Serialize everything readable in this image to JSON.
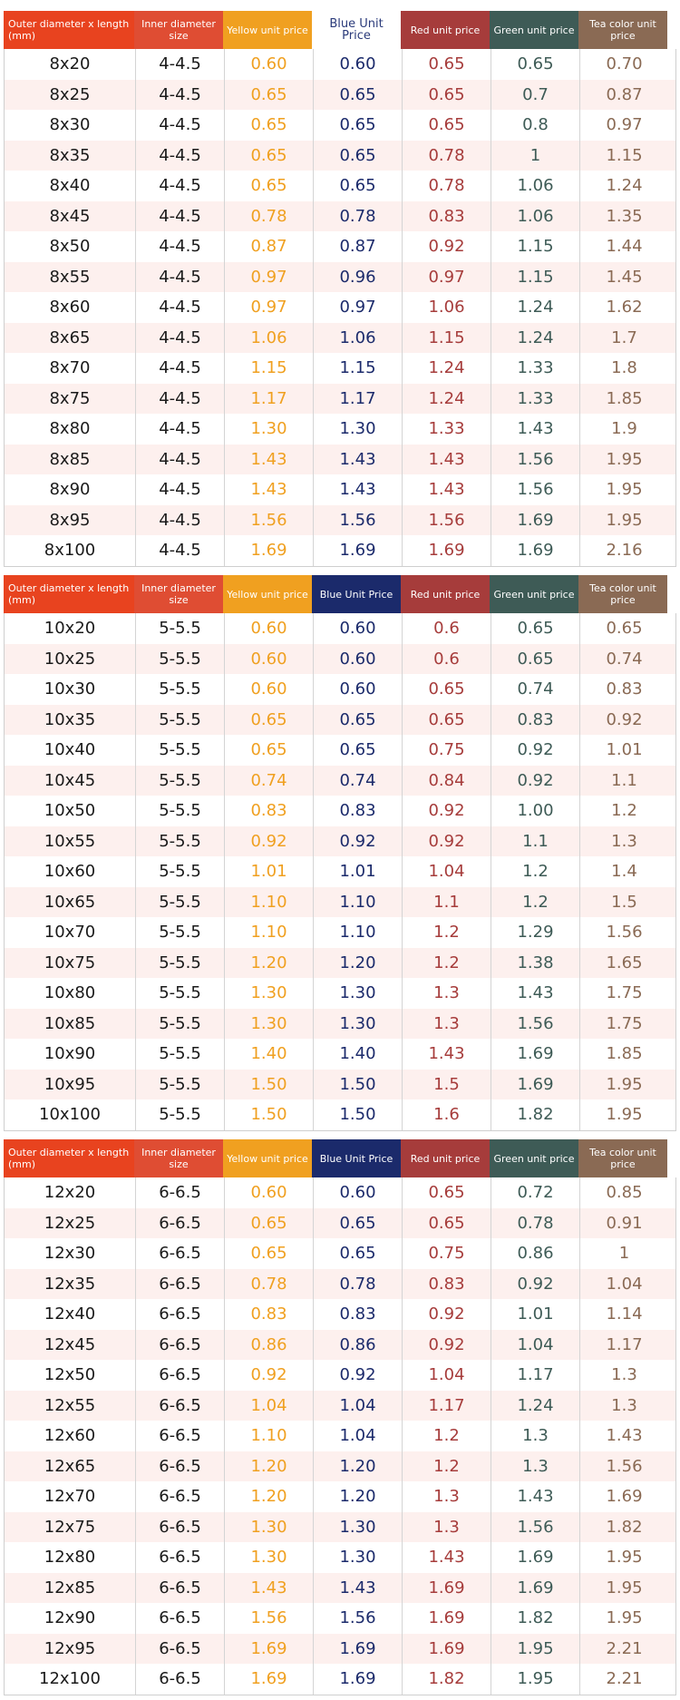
{
  "colors": {
    "size": "#e8431f",
    "inner": "#df4d33",
    "yellow": "#f0a020",
    "blue": "#1b2a6b",
    "red": "#a63c3b",
    "green": "#3e5b56",
    "tea": "#8a6a54"
  },
  "tables": [
    {
      "headers": [
        "Outer diameter x length (mm)",
        "Inner diameter size",
        "Yellow unit price",
        "Blue Unit Price",
        "Red unit price",
        "Green unit price",
        "Tea color unit price"
      ],
      "rows": [
        [
          "8x20",
          "4-4.5",
          "0.60",
          "0.60",
          "0.65",
          "0.65",
          "0.70"
        ],
        [
          "8x25",
          "4-4.5",
          "0.65",
          "0.65",
          "0.65",
          "0.7",
          "0.87"
        ],
        [
          "8x30",
          "4-4.5",
          "0.65",
          "0.65",
          "0.65",
          "0.8",
          "0.97"
        ],
        [
          "8x35",
          "4-4.5",
          "0.65",
          "0.65",
          "0.78",
          "1",
          "1.15"
        ],
        [
          "8x40",
          "4-4.5",
          "0.65",
          "0.65",
          "0.78",
          "1.06",
          "1.24"
        ],
        [
          "8x45",
          "4-4.5",
          "0.78",
          "0.78",
          "0.83",
          "1.06",
          "1.35"
        ],
        [
          "8x50",
          "4-4.5",
          "0.87",
          "0.87",
          "0.92",
          "1.15",
          "1.44"
        ],
        [
          "8x55",
          "4-4.5",
          "0.97",
          "0.96",
          "0.97",
          "1.15",
          "1.45"
        ],
        [
          "8x60",
          "4-4.5",
          "0.97",
          "0.97",
          "1.06",
          "1.24",
          "1.62"
        ],
        [
          "8x65",
          "4-4.5",
          "1.06",
          "1.06",
          "1.15",
          "1.24",
          "1.7"
        ],
        [
          "8x70",
          "4-4.5",
          "1.15",
          "1.15",
          "1.24",
          "1.33",
          "1.8"
        ],
        [
          "8x75",
          "4-4.5",
          "1.17",
          "1.17",
          "1.24",
          "1.33",
          "1.85"
        ],
        [
          "8x80",
          "4-4.5",
          "1.30",
          "1.30",
          "1.33",
          "1.43",
          "1.9"
        ],
        [
          "8x85",
          "4-4.5",
          "1.43",
          "1.43",
          "1.43",
          "1.56",
          "1.95"
        ],
        [
          "8x90",
          "4-4.5",
          "1.43",
          "1.43",
          "1.43",
          "1.56",
          "1.95"
        ],
        [
          "8x95",
          "4-4.5",
          "1.56",
          "1.56",
          "1.56",
          "1.69",
          "1.95"
        ],
        [
          "8x100",
          "4-4.5",
          "1.69",
          "1.69",
          "1.69",
          "1.69",
          "2.16"
        ]
      ]
    },
    {
      "headers": [
        "Outer diameter x length (mm)",
        "Inner diameter size",
        "Yellow unit price",
        "Blue Unit Price",
        "Red unit price",
        "Green unit price",
        "Tea color unit price"
      ],
      "rows": [
        [
          "10x20",
          "5-5.5",
          "0.60",
          "0.60",
          "0.6",
          "0.65",
          "0.65"
        ],
        [
          "10x25",
          "5-5.5",
          "0.60",
          "0.60",
          "0.6",
          "0.65",
          "0.74"
        ],
        [
          "10x30",
          "5-5.5",
          "0.60",
          "0.60",
          "0.65",
          "0.74",
          "0.83"
        ],
        [
          "10x35",
          "5-5.5",
          "0.65",
          "0.65",
          "0.65",
          "0.83",
          "0.92"
        ],
        [
          "10x40",
          "5-5.5",
          "0.65",
          "0.65",
          "0.75",
          "0.92",
          "1.01"
        ],
        [
          "10x45",
          "5-5.5",
          "0.74",
          "0.74",
          "0.84",
          "0.92",
          "1.1"
        ],
        [
          "10x50",
          "5-5.5",
          "0.83",
          "0.83",
          "0.92",
          "1.00",
          "1.2"
        ],
        [
          "10x55",
          "5-5.5",
          "0.92",
          "0.92",
          "0.92",
          "1.1",
          "1.3"
        ],
        [
          "10x60",
          "5-5.5",
          "1.01",
          "1.01",
          "1.04",
          "1.2",
          "1.4"
        ],
        [
          "10x65",
          "5-5.5",
          "1.10",
          "1.10",
          "1.1",
          "1.2",
          "1.5"
        ],
        [
          "10x70",
          "5-5.5",
          "1.10",
          "1.10",
          "1.2",
          "1.29",
          "1.56"
        ],
        [
          "10x75",
          "5-5.5",
          "1.20",
          "1.20",
          "1.2",
          "1.38",
          "1.65"
        ],
        [
          "10x80",
          "5-5.5",
          "1.30",
          "1.30",
          "1.3",
          "1.43",
          "1.75"
        ],
        [
          "10x85",
          "5-5.5",
          "1.30",
          "1.30",
          "1.3",
          "1.56",
          "1.75"
        ],
        [
          "10x90",
          "5-5.5",
          "1.40",
          "1.40",
          "1.43",
          "1.69",
          "1.85"
        ],
        [
          "10x95",
          "5-5.5",
          "1.50",
          "1.50",
          "1.5",
          "1.69",
          "1.95"
        ],
        [
          "10x100",
          "5-5.5",
          "1.50",
          "1.50",
          "1.6",
          "1.82",
          "1.95"
        ]
      ]
    },
    {
      "headers": [
        "Outer diameter x length (mm)",
        "Inner diameter size",
        "Yellow unit price",
        "Blue Unit Price",
        "Red unit price",
        "Green unit price",
        "Tea color unit price"
      ],
      "rows": [
        [
          "12x20",
          "6-6.5",
          "0.60",
          "0.60",
          "0.65",
          "0.72",
          "0.85"
        ],
        [
          "12x25",
          "6-6.5",
          "0.65",
          "0.65",
          "0.65",
          "0.78",
          "0.91"
        ],
        [
          "12x30",
          "6-6.5",
          "0.65",
          "0.65",
          "0.75",
          "0.86",
          "1"
        ],
        [
          "12x35",
          "6-6.5",
          "0.78",
          "0.78",
          "0.83",
          "0.92",
          "1.04"
        ],
        [
          "12x40",
          "6-6.5",
          "0.83",
          "0.83",
          "0.92",
          "1.01",
          "1.14"
        ],
        [
          "12x45",
          "6-6.5",
          "0.86",
          "0.86",
          "0.92",
          "1.04",
          "1.17"
        ],
        [
          "12x50",
          "6-6.5",
          "0.92",
          "0.92",
          "1.04",
          "1.17",
          "1.3"
        ],
        [
          "12x55",
          "6-6.5",
          "1.04",
          "1.04",
          "1.17",
          "1.24",
          "1.3"
        ],
        [
          "12x60",
          "6-6.5",
          "1.10",
          "1.04",
          "1.2",
          "1.3",
          "1.43"
        ],
        [
          "12x65",
          "6-6.5",
          "1.20",
          "1.20",
          "1.2",
          "1.3",
          "1.56"
        ],
        [
          "12x70",
          "6-6.5",
          "1.20",
          "1.20",
          "1.3",
          "1.43",
          "1.69"
        ],
        [
          "12x75",
          "6-6.5",
          "1.30",
          "1.30",
          "1.3",
          "1.56",
          "1.82"
        ],
        [
          "12x80",
          "6-6.5",
          "1.30",
          "1.30",
          "1.43",
          "1.69",
          "1.95"
        ],
        [
          "12x85",
          "6-6.5",
          "1.43",
          "1.43",
          "1.69",
          "1.69",
          "1.95"
        ],
        [
          "12x90",
          "6-6.5",
          "1.56",
          "1.56",
          "1.69",
          "1.82",
          "1.95"
        ],
        [
          "12x95",
          "6-6.5",
          "1.69",
          "1.69",
          "1.69",
          "1.95",
          "2.21"
        ],
        [
          "12x100",
          "6-6.5",
          "1.69",
          "1.69",
          "1.82",
          "1.95",
          "2.21"
        ]
      ]
    }
  ]
}
